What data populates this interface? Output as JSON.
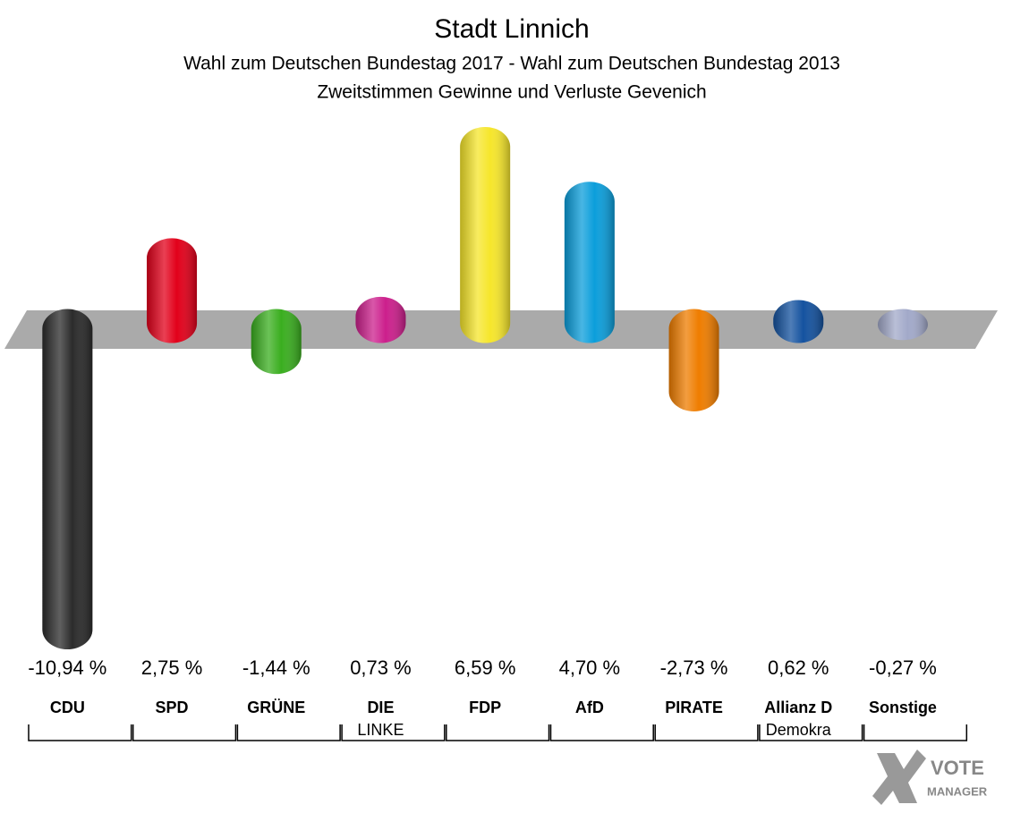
{
  "chart_data": {
    "type": "bar",
    "title": "Stadt Linnich",
    "subtitle": [
      "Wahl zum Deutschen Bundestag 2017 - Wahl zum Deutschen Bundestag 2013",
      "Zweitstimmen Gewinne und Verluste Gevenich"
    ],
    "categories": [
      [
        "CDU"
      ],
      [
        "SPD"
      ],
      [
        "GRÜNE"
      ],
      [
        "DIE",
        "LINKE"
      ],
      [
        "FDP"
      ],
      [
        "AfD"
      ],
      [
        "PIRATE"
      ],
      [
        "Allianz D",
        "Demokra"
      ],
      [
        "Sonstige"
      ]
    ],
    "values": [
      -10.94,
      2.75,
      -1.44,
      0.73,
      6.59,
      4.7,
      -2.73,
      0.62,
      -0.27
    ],
    "value_labels": [
      "-10,94 %",
      "2,75 %",
      "-1,44 %",
      "0,73 %",
      "6,59 %",
      "4,70 %",
      "-2,73 %",
      "0,62 %",
      "-0,27 %"
    ],
    "colors": [
      "#2b2b2b",
      "#e2001a",
      "#3aae1f",
      "#cc1f8c",
      "#f6e62b",
      "#0b9edb",
      "#ef7d00",
      "#14529f",
      "#a2a9c9"
    ],
    "logo": [
      "VOTE",
      "MANAGER"
    ]
  }
}
